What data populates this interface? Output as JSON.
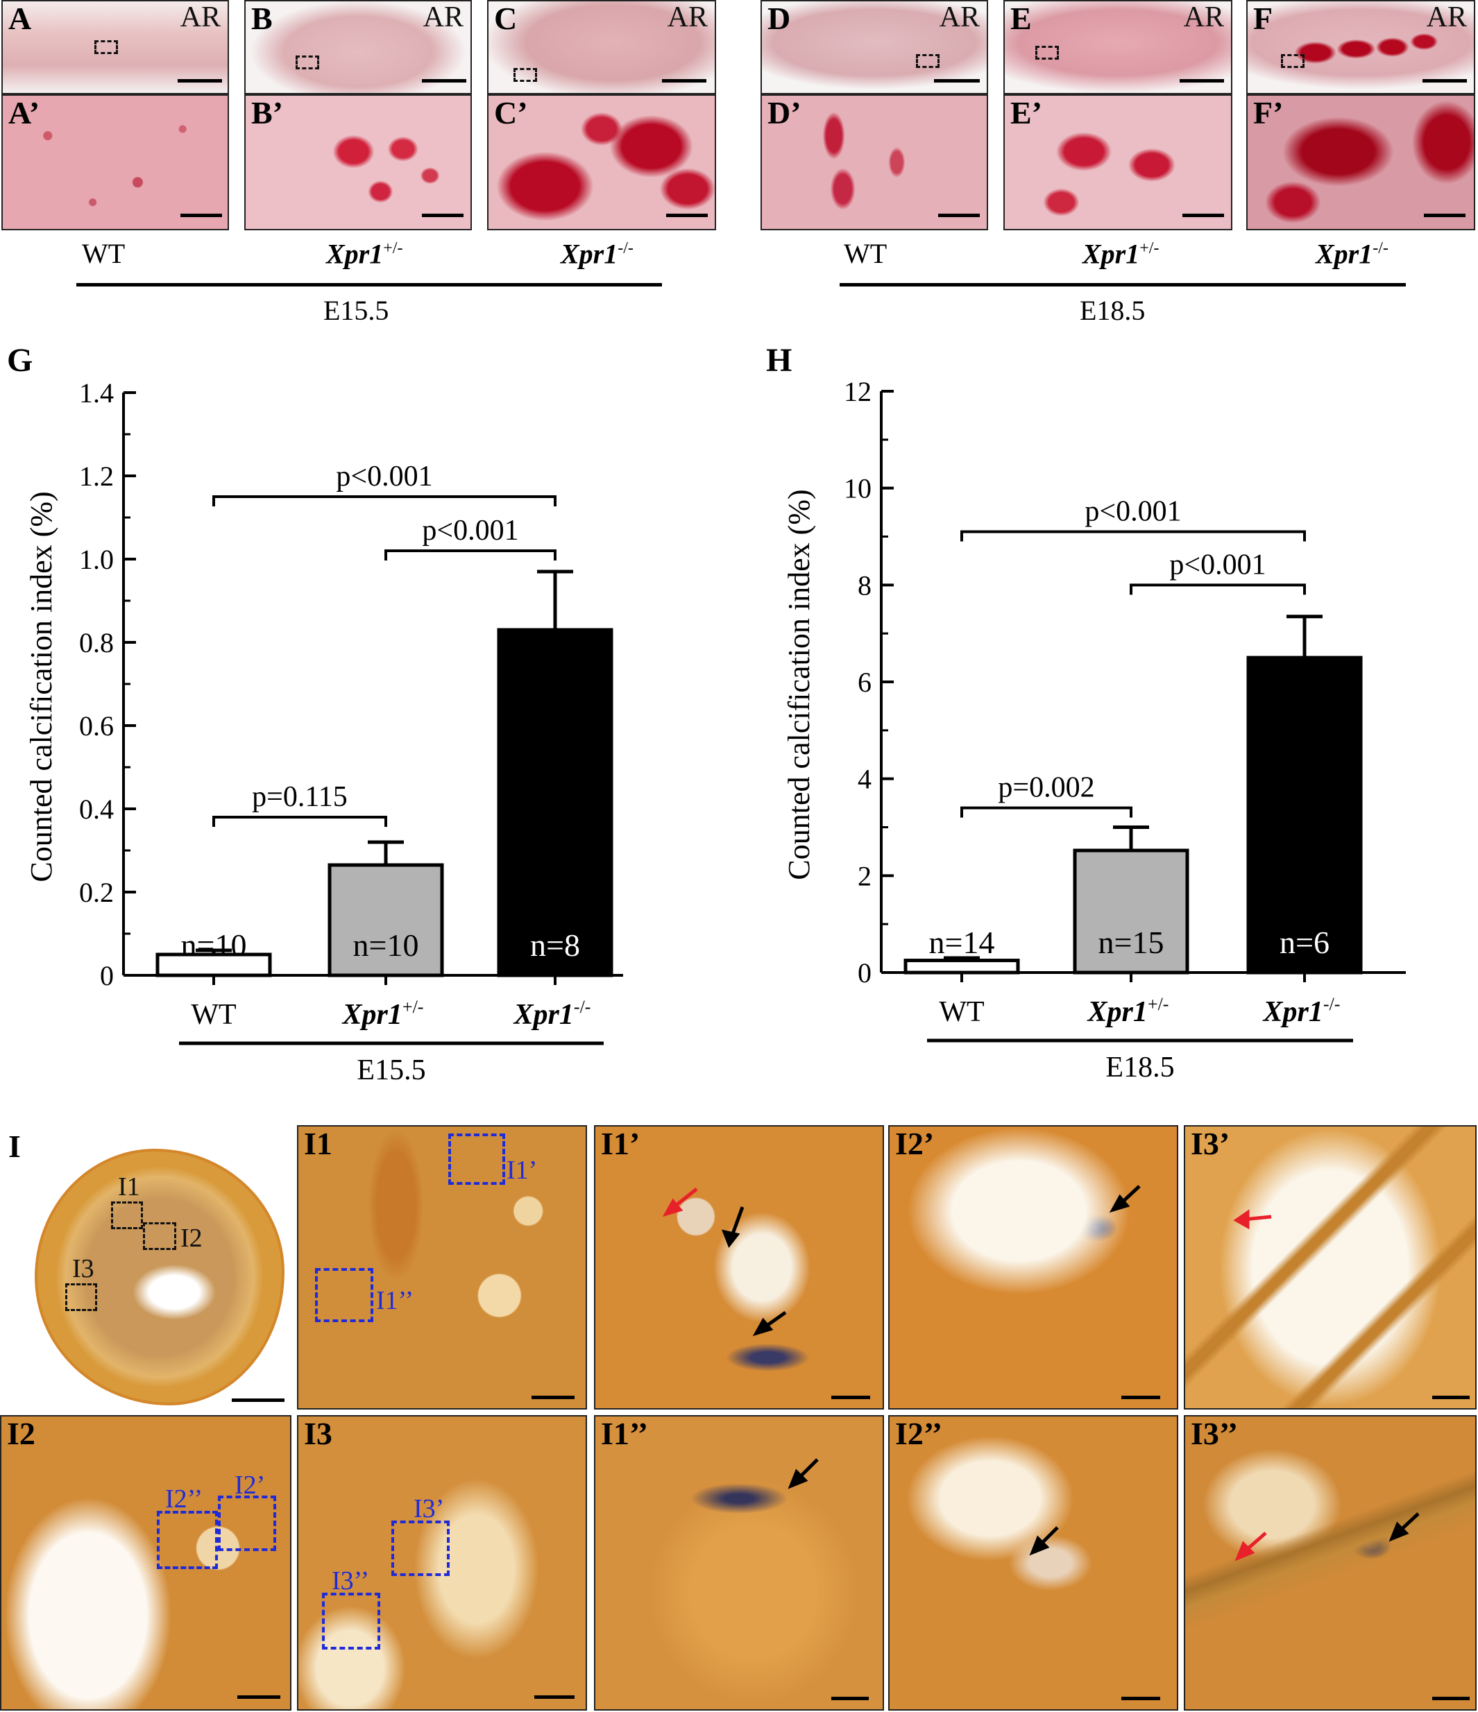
{
  "top_panels": {
    "e15": [
      {
        "label": "A",
        "ar": "AR"
      },
      {
        "label": "B",
        "ar": "AR"
      },
      {
        "label": "C",
        "ar": "AR"
      }
    ],
    "e15_zoom": [
      {
        "label": "A’"
      },
      {
        "label": "B’"
      },
      {
        "label": "C’"
      }
    ],
    "e18": [
      {
        "label": "D",
        "ar": "AR"
      },
      {
        "label": "E",
        "ar": "AR"
      },
      {
        "label": "F",
        "ar": "AR"
      }
    ],
    "e18_zoom": [
      {
        "label": "D’"
      },
      {
        "label": "E’"
      },
      {
        "label": "F’"
      }
    ],
    "genotypes_e15": [
      "WT",
      "Xpr1",
      "Xpr1"
    ],
    "genotypes_e18": [
      "WT",
      "Xpr1",
      "Xpr1"
    ],
    "genotype_sups": [
      "",
      "+/-",
      "-/-"
    ],
    "stage_e15": "E15.5",
    "stage_e18": "E18.5"
  },
  "chart_data": [
    {
      "panel": "G",
      "type": "bar",
      "categories": [
        "WT",
        "Xpr1+/-",
        "Xpr1-/-"
      ],
      "category_main": [
        "WT",
        "Xpr1",
        "Xpr1"
      ],
      "category_sup": [
        "",
        "+/-",
        "-/-"
      ],
      "group_label": "E15.5",
      "values": [
        0.05,
        0.265,
        0.83
      ],
      "errors": [
        0.01,
        0.055,
        0.14
      ],
      "n_labels": [
        "n=10",
        "n=10",
        "n=8"
      ],
      "bar_colors": [
        "#ffffff",
        "#b3b3b3",
        "#000000"
      ],
      "n_label_colors": [
        "#000000",
        "#000000",
        "#ffffff"
      ],
      "ylabel": "Counted calcification index (%)",
      "ylim": [
        0,
        1.4
      ],
      "yticks": [
        0,
        0.2,
        0.4,
        0.6,
        0.8,
        1.0,
        1.2,
        1.4
      ],
      "ytick_labels": [
        "0",
        "0.2",
        "0.4",
        "0.6",
        "0.8",
        "1.0",
        "1.2",
        "1.4"
      ],
      "significance": [
        {
          "from": 0,
          "to": 1,
          "y": 0.38,
          "label": "p=0.115"
        },
        {
          "from": 1,
          "to": 2,
          "y": 1.02,
          "label": "p<0.001"
        },
        {
          "from": 0,
          "to": 2,
          "y": 1.15,
          "label": "p<0.001"
        }
      ]
    },
    {
      "panel": "H",
      "type": "bar",
      "categories": [
        "WT",
        "Xpr1+/-",
        "Xpr1-/-"
      ],
      "category_main": [
        "WT",
        "Xpr1",
        "Xpr1"
      ],
      "category_sup": [
        "",
        "+/-",
        "-/-"
      ],
      "group_label": "E18.5",
      "values": [
        0.25,
        2.52,
        6.5
      ],
      "errors": [
        0.05,
        0.48,
        0.85
      ],
      "n_labels": [
        "n=14",
        "n=15",
        "n=6"
      ],
      "bar_colors": [
        "#ffffff",
        "#b3b3b3",
        "#000000"
      ],
      "n_label_colors": [
        "#000000",
        "#000000",
        "#ffffff"
      ],
      "ylabel": "Counted calcification index (%)",
      "ylim": [
        0,
        12
      ],
      "yticks": [
        0,
        2,
        4,
        6,
        8,
        10,
        12
      ],
      "ytick_labels": [
        "0",
        "2",
        "4",
        "6",
        "8",
        "10",
        "12"
      ],
      "significance": [
        {
          "from": 0,
          "to": 1,
          "y": 3.4,
          "label": "p=0.002"
        },
        {
          "from": 1,
          "to": 2,
          "y": 8.0,
          "label": "p<0.001"
        },
        {
          "from": 0,
          "to": 2,
          "y": 9.1,
          "label": "p<0.001"
        }
      ]
    }
  ],
  "bottom_panels": {
    "I": {
      "label": "I",
      "boxes": [
        "I1",
        "I2",
        "I3"
      ]
    },
    "I1": {
      "label": "I1",
      "boxes": [
        "I1’",
        "I1’’"
      ]
    },
    "I1p": {
      "label": "I1’"
    },
    "I2p": {
      "label": "I2’"
    },
    "I3p": {
      "label": "I3’"
    },
    "I2": {
      "label": "I2",
      "boxes": [
        "I2’’",
        "I2’"
      ]
    },
    "I3": {
      "label": "I3",
      "boxes": [
        "I3’",
        "I3’’"
      ]
    },
    "I1pp": {
      "label": "I1’’"
    },
    "I2pp": {
      "label": "I2’’"
    },
    "I3pp": {
      "label": "I3’’"
    }
  },
  "colors": {
    "ar_stain_bg": "#e7b9bd",
    "ar_stain_deposit": "#c4102b",
    "vonkossa_bg": "#d98a2a",
    "vonkossa_deposit": "#2b2a4a",
    "box_blue": "#1f2bd9",
    "arrow_red": "#e8202a",
    "arrow_black": "#000000"
  }
}
